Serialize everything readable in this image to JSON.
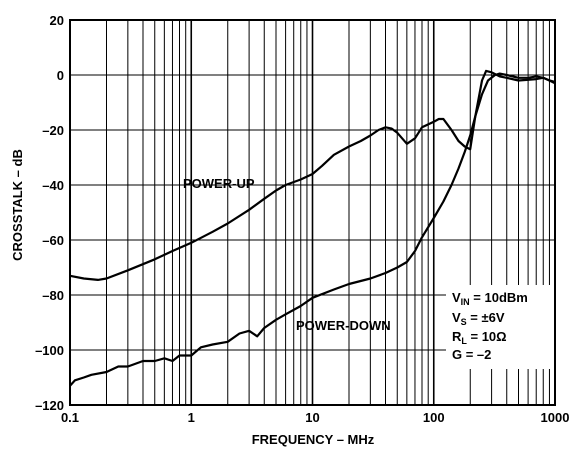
{
  "chart_data": {
    "type": "line",
    "xlabel": "FREQUENCY – MHz",
    "ylabel": "CROSSTALK – dB",
    "xscale": "log",
    "xlim": [
      0.1,
      1000
    ],
    "ylim": [
      -120,
      20
    ],
    "grid": true,
    "xticks": [
      {
        "value": 0.1,
        "label": "0.1"
      },
      {
        "value": 1,
        "label": "1"
      },
      {
        "value": 10,
        "label": "10"
      },
      {
        "value": 100,
        "label": "100"
      },
      {
        "value": 1000,
        "label": "1000"
      }
    ],
    "yticks": [
      {
        "value": 20,
        "label": "20"
      },
      {
        "value": 0,
        "label": "0"
      },
      {
        "value": -20,
        "label": "–20"
      },
      {
        "value": -40,
        "label": "–40"
      },
      {
        "value": -60,
        "label": "–60"
      },
      {
        "value": -80,
        "label": "–80"
      },
      {
        "value": -100,
        "label": "–100"
      },
      {
        "value": -120,
        "label": "–120"
      }
    ],
    "series": [
      {
        "name": "POWER-UP",
        "points": [
          [
            0.1,
            -73
          ],
          [
            0.13,
            -74
          ],
          [
            0.17,
            -74.5
          ],
          [
            0.2,
            -74
          ],
          [
            0.3,
            -71
          ],
          [
            0.5,
            -67
          ],
          [
            0.7,
            -64
          ],
          [
            1,
            -61
          ],
          [
            1.5,
            -57
          ],
          [
            2,
            -54
          ],
          [
            3,
            -49
          ],
          [
            4,
            -45
          ],
          [
            5,
            -42
          ],
          [
            6,
            -40
          ],
          [
            8,
            -38
          ],
          [
            10,
            -36
          ],
          [
            12,
            -33
          ],
          [
            15,
            -29
          ],
          [
            20,
            -26
          ],
          [
            25,
            -24
          ],
          [
            30,
            -22
          ],
          [
            35,
            -20
          ],
          [
            40,
            -19
          ],
          [
            45,
            -19.5
          ],
          [
            50,
            -21
          ],
          [
            60,
            -25
          ],
          [
            70,
            -23
          ],
          [
            80,
            -19
          ],
          [
            100,
            -17
          ],
          [
            110,
            -16
          ],
          [
            120,
            -16
          ],
          [
            140,
            -20
          ],
          [
            160,
            -24
          ],
          [
            180,
            -26
          ],
          [
            200,
            -27
          ],
          [
            220,
            -15
          ],
          [
            250,
            -2
          ],
          [
            270,
            1.5
          ],
          [
            300,
            1
          ],
          [
            350,
            -0.5
          ],
          [
            400,
            -1
          ],
          [
            500,
            -2
          ],
          [
            700,
            -1.5
          ],
          [
            800,
            -1
          ],
          [
            900,
            -2
          ],
          [
            1000,
            -3
          ]
        ]
      },
      {
        "name": "POWER-DOWN",
        "points": [
          [
            0.1,
            -113
          ],
          [
            0.11,
            -111
          ],
          [
            0.13,
            -110
          ],
          [
            0.15,
            -109
          ],
          [
            0.2,
            -108
          ],
          [
            0.25,
            -106
          ],
          [
            0.3,
            -106
          ],
          [
            0.4,
            -104
          ],
          [
            0.5,
            -104
          ],
          [
            0.6,
            -103
          ],
          [
            0.7,
            -104
          ],
          [
            0.8,
            -102
          ],
          [
            1,
            -102
          ],
          [
            1.2,
            -99
          ],
          [
            1.5,
            -98
          ],
          [
            2,
            -97
          ],
          [
            2.5,
            -94
          ],
          [
            3,
            -93
          ],
          [
            3.5,
            -95
          ],
          [
            4,
            -92
          ],
          [
            5,
            -89
          ],
          [
            6,
            -87
          ],
          [
            8,
            -84
          ],
          [
            10,
            -81
          ],
          [
            15,
            -78
          ],
          [
            20,
            -76
          ],
          [
            30,
            -74
          ],
          [
            40,
            -72
          ],
          [
            50,
            -70
          ],
          [
            60,
            -68
          ],
          [
            70,
            -64
          ],
          [
            80,
            -59
          ],
          [
            100,
            -52
          ],
          [
            120,
            -46
          ],
          [
            140,
            -40
          ],
          [
            160,
            -34
          ],
          [
            180,
            -28
          ],
          [
            200,
            -22
          ],
          [
            220,
            -15
          ],
          [
            250,
            -7
          ],
          [
            280,
            -2
          ],
          [
            320,
            0
          ],
          [
            350,
            0.5
          ],
          [
            400,
            0
          ],
          [
            500,
            -1
          ],
          [
            600,
            -1
          ],
          [
            700,
            -0.5
          ],
          [
            800,
            -1
          ],
          [
            900,
            -2
          ],
          [
            1000,
            -2.5
          ]
        ]
      }
    ],
    "annotations": {
      "conditions": [
        {
          "main": "V",
          "sub": "IN",
          "rest": " = 10dBm"
        },
        {
          "main": "V",
          "sub": "S",
          "rest": " = ±6V"
        },
        {
          "main": "R",
          "sub": "L",
          "rest": " = 10Ω"
        },
        {
          "main": "G = –2",
          "sub": "",
          "rest": ""
        }
      ]
    }
  }
}
